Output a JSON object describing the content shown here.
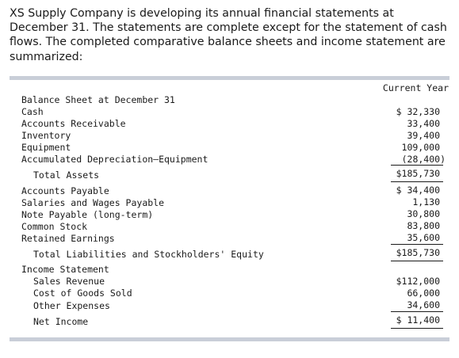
{
  "intro": {
    "line1": "XS Supply Company is developing its annual financial statements at",
    "line2": "December 31. The statements are complete except for the statement of cash",
    "line3": "flows. The completed comparative balance sheets and income statement are",
    "line4": "summarized:"
  },
  "table": {
    "column_header": "Current Year",
    "balance_sheet_title": "Balance Sheet at December 31",
    "rows": [
      {
        "label": "Cash",
        "value": "$ 32,330"
      },
      {
        "label": "Accounts Receivable",
        "value": "33,400"
      },
      {
        "label": "Inventory",
        "value": "39,400"
      },
      {
        "label": "Equipment",
        "value": "109,000"
      },
      {
        "label": "Accumulated Depreciation—Equipment",
        "value": "(28,400)"
      },
      {
        "label": "Total Assets",
        "value": "$185,730"
      },
      {
        "label": "Accounts Payable",
        "value": "$ 34,400"
      },
      {
        "label": "Salaries and Wages Payable",
        "value": "1,130"
      },
      {
        "label": "Note Payable (long-term)",
        "value": "30,800"
      },
      {
        "label": "Common Stock",
        "value": "83,800"
      },
      {
        "label": "Retained Earnings",
        "value": "35,600"
      },
      {
        "label": "Total Liabilities and Stockholders' Equity",
        "value": "$185,730"
      }
    ],
    "income_statement_title": "Income Statement",
    "income_rows": [
      {
        "label": "Sales Revenue",
        "value": "$112,000"
      },
      {
        "label": "Cost of Goods Sold",
        "value": "66,000"
      },
      {
        "label": "Other Expenses",
        "value": "34,600"
      },
      {
        "label": "Net Income",
        "value": "$ 11,400"
      }
    ]
  }
}
